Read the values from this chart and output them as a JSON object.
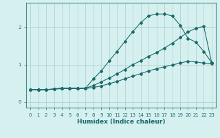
{
  "xlabel": "Humidex (Indice chaleur)",
  "bg_color": "#d6f0f0",
  "grid_color": "#b0d4d0",
  "line_color": "#1a6b6b",
  "spine_color": "#4a8a8a",
  "xlim": [
    -0.5,
    23.5
  ],
  "ylim": [
    -0.15,
    2.65
  ],
  "yticks": [
    0,
    1,
    2
  ],
  "xtick_labels": [
    "0",
    "1",
    "2",
    "3",
    "4",
    "5",
    "6",
    "7",
    "8",
    "9",
    "10",
    "11",
    "12",
    "13",
    "14",
    "15",
    "16",
    "17",
    "18",
    "19",
    "20",
    "21",
    "22",
    "23"
  ],
  "series": [
    {
      "x": [
        0,
        1,
        2,
        3,
        4,
        5,
        6,
        7,
        8,
        9,
        10,
        11,
        12,
        13,
        14,
        15,
        16,
        17,
        18,
        19,
        20,
        21,
        22,
        23
      ],
      "y": [
        0.33,
        0.33,
        0.33,
        0.35,
        0.37,
        0.37,
        0.37,
        0.37,
        0.62,
        0.83,
        1.1,
        1.35,
        1.62,
        1.88,
        2.12,
        2.3,
        2.35,
        2.35,
        2.3,
        2.05,
        1.7,
        1.6,
        1.35,
        1.05
      ]
    },
    {
      "x": [
        0,
        1,
        2,
        3,
        4,
        5,
        6,
        7,
        8,
        9,
        10,
        11,
        12,
        13,
        14,
        15,
        16,
        17,
        18,
        19,
        20,
        21,
        22,
        23
      ],
      "y": [
        0.33,
        0.33,
        0.33,
        0.35,
        0.37,
        0.37,
        0.37,
        0.37,
        0.44,
        0.54,
        0.64,
        0.75,
        0.87,
        1.0,
        1.1,
        1.22,
        1.32,
        1.44,
        1.57,
        1.72,
        1.87,
        1.97,
        2.02,
        1.05
      ]
    },
    {
      "x": [
        0,
        1,
        2,
        3,
        4,
        5,
        6,
        7,
        8,
        9,
        10,
        11,
        12,
        13,
        14,
        15,
        16,
        17,
        18,
        19,
        20,
        21,
        22,
        23
      ],
      "y": [
        0.33,
        0.33,
        0.33,
        0.34,
        0.36,
        0.36,
        0.36,
        0.36,
        0.39,
        0.43,
        0.49,
        0.55,
        0.62,
        0.69,
        0.76,
        0.83,
        0.89,
        0.94,
        0.99,
        1.04,
        1.09,
        1.07,
        1.04,
        1.02
      ]
    }
  ]
}
